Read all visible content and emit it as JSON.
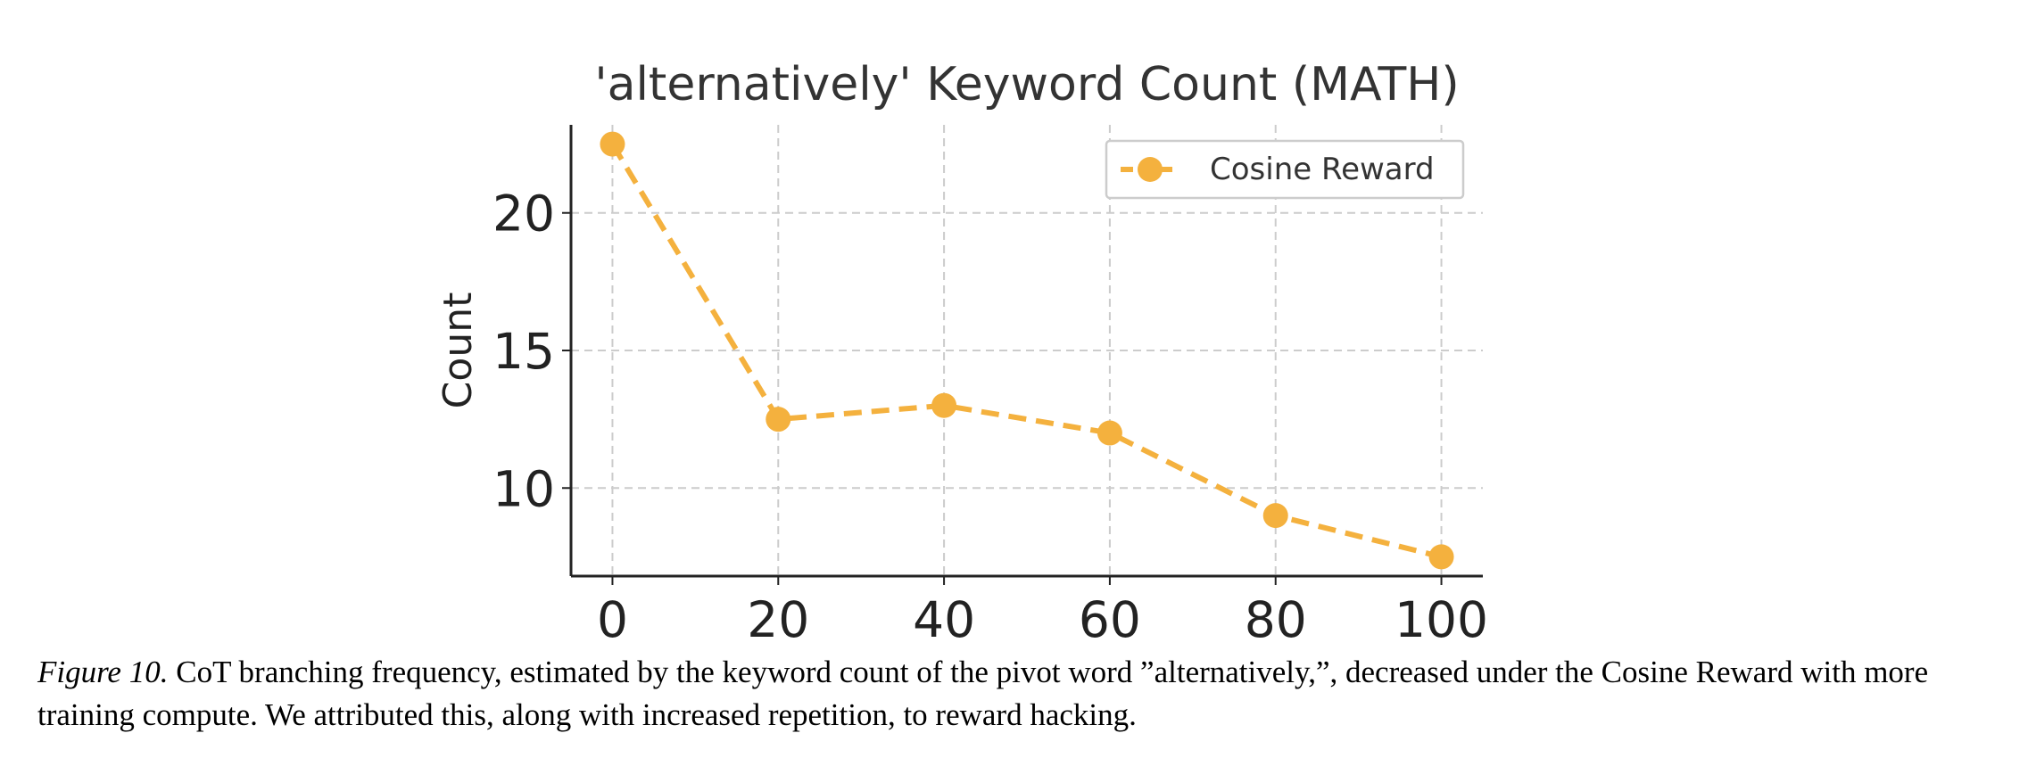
{
  "chart_data": {
    "type": "line",
    "title": "'alternatively' Keyword Count (MATH)",
    "xlabel": "",
    "ylabel": "Count",
    "x": [
      0,
      20,
      40,
      60,
      80,
      100
    ],
    "series": [
      {
        "name": "Cosine Reward",
        "values": [
          22.5,
          12.5,
          13.0,
          12.0,
          9.0,
          7.5
        ],
        "color": "#F4B13E",
        "linestyle": "dashed",
        "marker": "circle"
      }
    ],
    "xlim": [
      -5,
      105
    ],
    "ylim": [
      6.8,
      23.2
    ],
    "xticks": [
      "0",
      "20",
      "40",
      "60",
      "80",
      "100"
    ],
    "yticks": [
      "10",
      "15",
      "20"
    ],
    "grid": true,
    "legend": "top-right"
  },
  "caption": {
    "label": "Figure 10.",
    "text": "CoT branching frequency, estimated by the keyword count of the pivot word ”alternatively,”, decreased under the Cosine Reward with more training compute. We attributed this, along with increased repetition, to reward hacking."
  }
}
